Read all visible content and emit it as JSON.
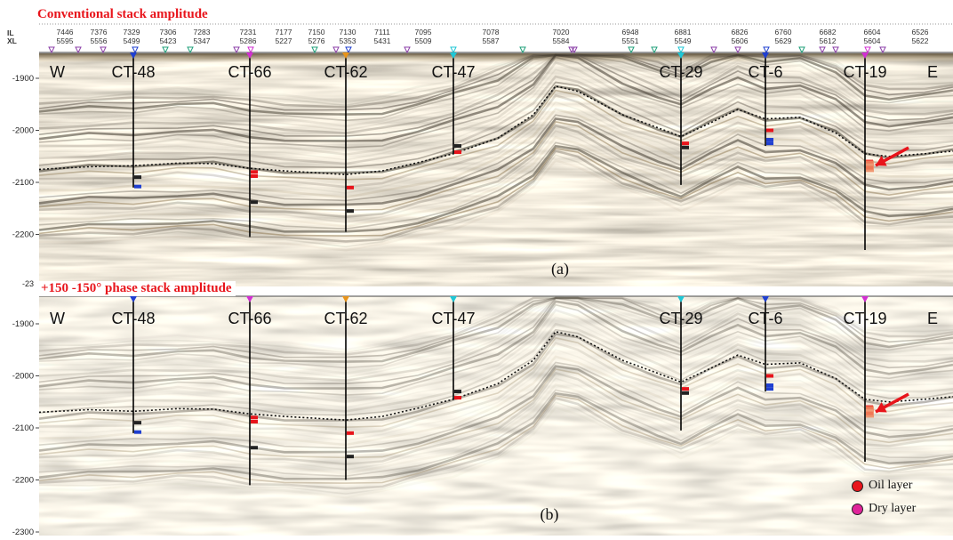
{
  "panel_a": {
    "title": "Conventional stack  amplitude",
    "caption": "(a)",
    "y_ticks": [
      "-1900",
      "-2000",
      "-2100",
      "-2200"
    ],
    "y_bottom_partial": "-23",
    "il_label": "IL",
    "xl_label": "XL",
    "inlines": [
      "7446",
      "7376",
      "7329",
      "7306",
      "7283",
      "7231",
      "7177",
      "7150",
      "7130",
      "7111",
      "7095",
      "7078",
      "7020",
      "6948",
      "6881",
      "6826",
      "6760",
      "6682",
      "6604",
      "6526"
    ],
    "crosslines": [
      "5595",
      "5556",
      "5499",
      "5423",
      "5347",
      "5286",
      "5227",
      "5276",
      "5353",
      "5431",
      "5509",
      "5587",
      "5584",
      "5551",
      "5549",
      "5606",
      "5629",
      "5612",
      "5604",
      "5622"
    ]
  },
  "panel_b": {
    "title": "+150 -150° phase stack amplitude",
    "caption": "(b)",
    "y_ticks": [
      "-1900",
      "-2000",
      "-2100",
      "-2200",
      "-2300"
    ]
  },
  "direction": {
    "west": "W",
    "east": "E"
  },
  "wells": [
    "CT-48",
    "CT-66",
    "CT-62",
    "CT-47",
    "CT-29",
    "CT-6",
    "CT-19"
  ],
  "legend": {
    "oil_label": "Oil layer",
    "dry_label": "Dry layer",
    "oil_color": "#e8141b",
    "dry_color": "#e0249a"
  },
  "colors": {
    "title": "#e8141b",
    "arrow": "#e8141b",
    "horizon": "#111111"
  }
}
